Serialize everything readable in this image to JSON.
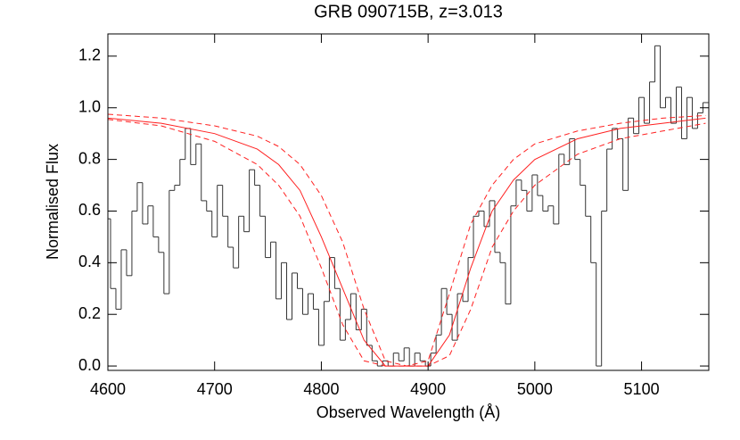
{
  "chart_data": {
    "type": "line",
    "title": "GRB 090715B, z=3.013",
    "xlabel": "Observed Wavelength (Å)",
    "ylabel": "Normalised Flux",
    "xlim": [
      4600,
      5163
    ],
    "ylim": [
      -0.017,
      1.286
    ],
    "xticks": [
      4600,
      4700,
      4800,
      4900,
      5000,
      5100
    ],
    "yticks": [
      {
        "value": 0,
        "label": "0.0"
      },
      0.2,
      0.4,
      0.6,
      0.8,
      {
        "value": 1,
        "label": "1.0"
      },
      1.2
    ],
    "series": [
      {
        "color": "#333333",
        "step": true,
        "x": [
          4600,
          4605,
          4610,
          4615,
          4620,
          4625,
          4630,
          4635,
          4640,
          4645,
          4650,
          4655,
          4660,
          4665,
          4670,
          4675,
          4680,
          4685,
          4690,
          4695,
          4700,
          4705,
          4710,
          4715,
          4720,
          4725,
          4730,
          4735,
          4740,
          4745,
          4750,
          4755,
          4760,
          4765,
          4770,
          4775,
          4780,
          4785,
          4790,
          4795,
          4800,
          4805,
          4810,
          4815,
          4820,
          4825,
          4830,
          4835,
          4840,
          4845,
          4850,
          4855,
          4860,
          4865,
          4870,
          4875,
          4880,
          4885,
          4890,
          4895,
          4900,
          4905,
          4910,
          4915,
          4920,
          4925,
          4930,
          4935,
          4940,
          4945,
          4950,
          4955,
          4960,
          4965,
          4970,
          4975,
          4980,
          4985,
          4990,
          4995,
          5000,
          5005,
          5010,
          5015,
          5020,
          5025,
          5030,
          5035,
          5040,
          5045,
          5050,
          5055,
          5060,
          5065,
          5070,
          5075,
          5080,
          5085,
          5090,
          5095,
          5100,
          5105,
          5110,
          5115,
          5120,
          5125,
          5130,
          5135,
          5140,
          5145,
          5150,
          5155,
          5160
        ],
        "values": [
          0.57,
          0.3,
          0.22,
          0.45,
          0.35,
          0.6,
          0.71,
          0.55,
          0.62,
          0.5,
          0.44,
          0.28,
          0.68,
          0.7,
          0.8,
          0.92,
          0.78,
          0.86,
          0.64,
          0.6,
          0.5,
          0.7,
          0.58,
          0.46,
          0.38,
          0.58,
          0.52,
          0.76,
          0.7,
          0.58,
          0.42,
          0.48,
          0.26,
          0.4,
          0.18,
          0.36,
          0.3,
          0.2,
          0.28,
          0.22,
          0.08,
          0.25,
          0.42,
          0.3,
          0.1,
          0.18,
          0.28,
          0.14,
          0.22,
          0.08,
          0.02,
          0,
          0.02,
          0,
          0.05,
          0.02,
          0.07,
          0,
          0.05,
          0.02,
          0,
          0.05,
          0.12,
          0.3,
          0.2,
          0.1,
          0.28,
          0.25,
          0.42,
          0.58,
          0.6,
          0.54,
          0.64,
          0.44,
          0.4,
          0.24,
          0.62,
          0.72,
          0.68,
          0.6,
          0.74,
          0.66,
          0.6,
          0.62,
          0.55,
          0.82,
          0.78,
          0.88,
          0.8,
          0.7,
          0.58,
          0.4,
          0,
          0.6,
          0.84,
          0.92,
          0.88,
          0.68,
          0.96,
          0.9,
          1.04,
          0.94,
          1.1,
          1.24,
          1,
          1.04,
          0.94,
          1.08,
          0.88,
          1.04,
          0.92,
          0.98,
          1.02
        ]
      },
      {
        "color": "#ff2020",
        "dashed": true,
        "x": [
          4600,
          4650,
          4700,
          4740,
          4760,
          4780,
          4800,
          4820,
          4840,
          4860,
          4880,
          4900,
          4920,
          4940,
          4960,
          4980,
          5000,
          5040,
          5080,
          5120,
          5160
        ],
        "values": [
          0.975,
          0.96,
          0.93,
          0.89,
          0.85,
          0.78,
          0.66,
          0.48,
          0.22,
          0.02,
          0,
          0.02,
          0.28,
          0.55,
          0.7,
          0.8,
          0.86,
          0.91,
          0.94,
          0.96,
          0.97
        ]
      },
      {
        "color": "#ff2020",
        "dashed": false,
        "x": [
          4600,
          4650,
          4700,
          4740,
          4760,
          4780,
          4800,
          4820,
          4840,
          4860,
          4880,
          4900,
          4920,
          4940,
          4960,
          4980,
          5000,
          5040,
          5080,
          5120,
          5160
        ],
        "values": [
          0.96,
          0.94,
          0.9,
          0.84,
          0.78,
          0.68,
          0.5,
          0.3,
          0.1,
          0,
          0,
          0,
          0.12,
          0.38,
          0.6,
          0.72,
          0.8,
          0.88,
          0.92,
          0.94,
          0.96
        ]
      },
      {
        "color": "#ff2020",
        "dashed": true,
        "x": [
          4600,
          4650,
          4700,
          4740,
          4760,
          4780,
          4800,
          4820,
          4840,
          4860,
          4880,
          4900,
          4920,
          4940,
          4960,
          4980,
          5000,
          5040,
          5080,
          5120,
          5160
        ],
        "values": [
          0.955,
          0.93,
          0.87,
          0.78,
          0.7,
          0.58,
          0.38,
          0.16,
          0.02,
          0,
          0,
          0,
          0.04,
          0.22,
          0.46,
          0.6,
          0.7,
          0.82,
          0.88,
          0.91,
          0.94
        ]
      }
    ]
  }
}
